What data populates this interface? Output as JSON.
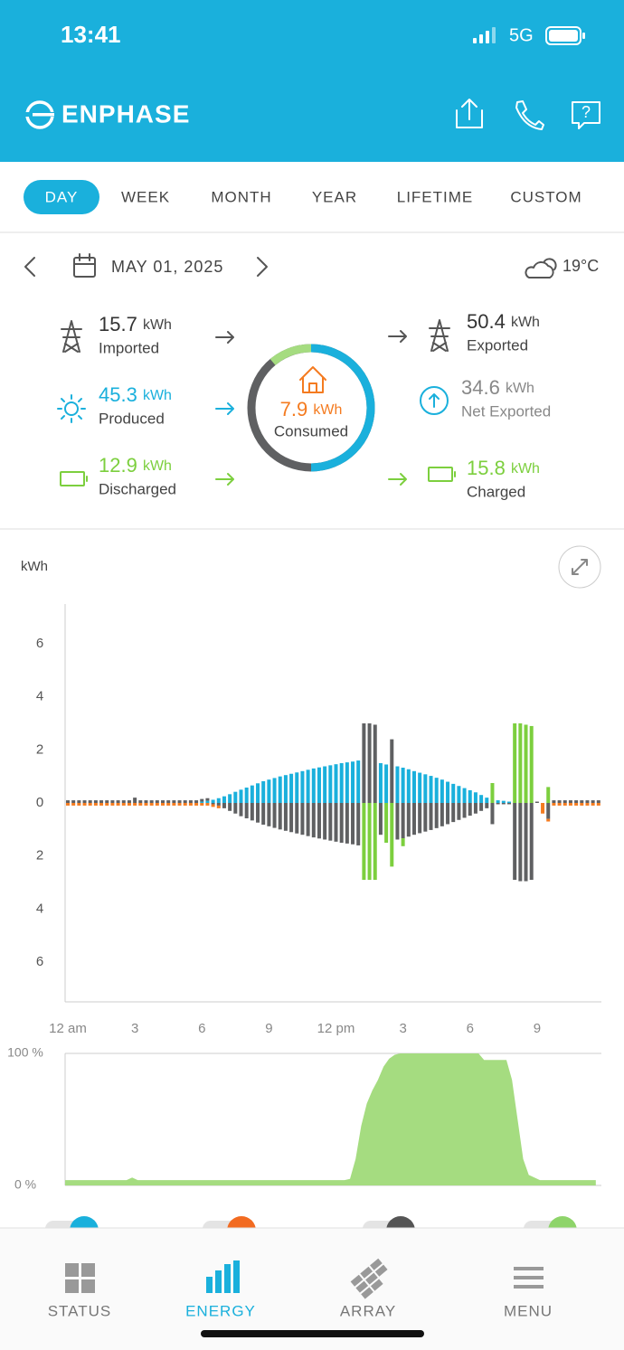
{
  "status_bar": {
    "time": "13:41",
    "network": "5G"
  },
  "header": {
    "brand": "ENPHASE"
  },
  "tabs": {
    "items": [
      "DAY",
      "WEEK",
      "MONTH",
      "YEAR",
      "LIFETIME",
      "CUSTOM"
    ],
    "active": 0
  },
  "date_bar": {
    "date": "MAY 01, 2025",
    "temperature": "19°C"
  },
  "flows": {
    "imported": {
      "value": 15.7,
      "unit": "kWh",
      "label": "Imported"
    },
    "produced": {
      "value": 45.3,
      "unit": "kWh",
      "label": "Produced"
    },
    "discharged": {
      "value": 12.9,
      "unit": "kWh",
      "label": "Discharged"
    },
    "consumed": {
      "value": 7.9,
      "unit": "kWh",
      "label": "Consumed"
    },
    "exported": {
      "value": 50.4,
      "unit": "kWh",
      "label": "Exported"
    },
    "net_exported": {
      "value": 34.6,
      "unit": "kWh",
      "label": "Net Exported"
    },
    "charged": {
      "value": 15.8,
      "unit": "kWh",
      "label": "Charged"
    }
  },
  "chart_data": [
    {
      "type": "bar",
      "stacked": true,
      "y_label": "kWh",
      "x": [
        0,
        0.25,
        0.5,
        0.75,
        1,
        1.25,
        1.5,
        1.75,
        2,
        2.25,
        2.5,
        2.75,
        3,
        3.25,
        3.5,
        3.75,
        4,
        4.25,
        4.5,
        4.75,
        5,
        5.25,
        5.5,
        5.75,
        6,
        6.25,
        6.5,
        6.75,
        7,
        7.25,
        7.5,
        7.75,
        8,
        8.25,
        8.5,
        8.75,
        9,
        9.25,
        9.5,
        9.75,
        10,
        10.25,
        10.5,
        10.75,
        11,
        11.25,
        11.5,
        11.75,
        12,
        12.25,
        12.5,
        12.75,
        13,
        13.25,
        13.5,
        13.75,
        14,
        14.25,
        14.5,
        14.75,
        15,
        15.25,
        15.5,
        15.75,
        16,
        16.25,
        16.5,
        16.75,
        17,
        17.25,
        17.5,
        17.75,
        18,
        18.25,
        18.5,
        18.75,
        19,
        19.25,
        19.5,
        19.75,
        20,
        20.25,
        20.5,
        20.75,
        21,
        21.25,
        21.5,
        21.75,
        22,
        22.25,
        22.5,
        22.75,
        23,
        23.25,
        23.5,
        23.75
      ],
      "xlim": [
        0,
        24
      ],
      "xticks": [
        {
          "value": 0,
          "label": "12 am"
        },
        3,
        6,
        9,
        {
          "value": 12,
          "label": "12 pm"
        },
        {
          "value": 15,
          "label": "3"
        },
        {
          "value": 18,
          "label": "6"
        },
        {
          "value": 21,
          "label": "9"
        }
      ],
      "ylim": [
        -7.5,
        7.5
      ],
      "yticks": [
        6,
        4,
        2,
        0,
        {
          "value": -2,
          "label": "2"
        },
        {
          "value": -4,
          "label": "4"
        },
        {
          "value": -6,
          "label": "6"
        }
      ],
      "series": [
        {
          "color": "#1ab0dc",
          "values": [
            0,
            0,
            0,
            0,
            0,
            0,
            0,
            0,
            0,
            0,
            0,
            0,
            0,
            0,
            0,
            0,
            0,
            0,
            0,
            0,
            0,
            0,
            0,
            0,
            0.05,
            0.08,
            0.12,
            0.18,
            0.25,
            0.33,
            0.42,
            0.5,
            0.58,
            0.66,
            0.74,
            0.82,
            0.88,
            0.94,
            1.0,
            1.05,
            1.1,
            1.15,
            1.2,
            1.25,
            1.3,
            1.34,
            1.38,
            1.42,
            1.46,
            1.5,
            1.53,
            1.56,
            1.6,
            0,
            0,
            0,
            1.5,
            1.45,
            0,
            1.38,
            1.33,
            1.27,
            1.2,
            1.14,
            1.08,
            1.02,
            0.95,
            0.88,
            0.8,
            0.72,
            0.64,
            0.56,
            0.48,
            0.4,
            0.3,
            0.2,
            0,
            0.1,
            0.08,
            0.05,
            0,
            0,
            0,
            0,
            0,
            0,
            0,
            0,
            0,
            0,
            0,
            0,
            0,
            0,
            0,
            0
          ]
        },
        {
          "color": "#5f6062",
          "values": [
            0.1,
            0.1,
            0.1,
            0.1,
            0.1,
            0.1,
            0.1,
            0.1,
            0.1,
            0.1,
            0.1,
            0.1,
            0.2,
            0.1,
            0.1,
            0.1,
            0.1,
            0.1,
            0.1,
            0.1,
            0.1,
            0.1,
            0.1,
            0.1,
            0.1,
            0.1,
            -0.05,
            -0.1,
            -0.2,
            -0.3,
            -0.4,
            -0.5,
            -0.58,
            -0.66,
            -0.74,
            -0.82,
            -0.88,
            -0.94,
            -1.0,
            -1.05,
            -1.1,
            -1.15,
            -1.2,
            -1.25,
            -1.3,
            -1.34,
            -1.38,
            -1.42,
            -1.46,
            -1.5,
            -1.53,
            -1.56,
            -1.6,
            3,
            3,
            2.95,
            -1.2,
            0,
            2.4,
            -1.38,
            -1.33,
            -1.27,
            -1.2,
            -1.14,
            -1.08,
            -1.02,
            -0.95,
            -0.88,
            -0.8,
            -0.72,
            -0.64,
            -0.56,
            -0.48,
            -0.4,
            -0.3,
            -0.2,
            -0.8,
            -0.05,
            -0.05,
            -0.05,
            -2.9,
            -2.95,
            -2.95,
            -2.9,
            0.05,
            0,
            -0.6,
            0.1,
            0.1,
            0.1,
            0.1,
            0.1,
            0.1,
            0.1,
            0.1,
            0.1
          ]
        },
        {
          "color": "#7ccf3e",
          "values": [
            0,
            0,
            0,
            0,
            0,
            0,
            0,
            0,
            0,
            0,
            0,
            0,
            0,
            0,
            0,
            0,
            0,
            0,
            0,
            0,
            0,
            0,
            0,
            0,
            0,
            0,
            0,
            0,
            0,
            0,
            0,
            0,
            0,
            0,
            0,
            0,
            0,
            0,
            0,
            0,
            0,
            0,
            0,
            0,
            0,
            0,
            0,
            0,
            0,
            0,
            0,
            0,
            0,
            -2.9,
            -2.9,
            -2.9,
            0,
            -1.5,
            -2.4,
            0,
            -0.3,
            0,
            0,
            0,
            0,
            0,
            0,
            0,
            0,
            0,
            0,
            0,
            0,
            0,
            0,
            0,
            0.75,
            0,
            0,
            0,
            3,
            3,
            2.95,
            2.9,
            0,
            0,
            0.6,
            0,
            0,
            0,
            0,
            0,
            0,
            0,
            0,
            0
          ]
        },
        {
          "color": "#f47b20",
          "values": [
            -0.1,
            -0.1,
            -0.1,
            -0.1,
            -0.1,
            -0.1,
            -0.1,
            -0.1,
            -0.1,
            -0.1,
            -0.1,
            -0.1,
            -0.1,
            -0.1,
            -0.1,
            -0.1,
            -0.1,
            -0.1,
            -0.1,
            -0.1,
            -0.1,
            -0.1,
            -0.1,
            -0.1,
            -0.1,
            -0.1,
            -0.1,
            -0.1,
            0,
            0,
            0,
            0,
            0,
            0,
            0,
            0,
            0,
            0,
            0,
            0,
            0,
            0,
            0,
            0,
            0,
            0,
            0,
            0,
            0,
            0,
            0,
            0,
            0,
            0,
            0,
            0,
            0,
            0,
            0,
            0,
            0,
            0,
            0,
            0,
            0,
            0,
            0,
            0,
            0,
            0,
            0,
            0,
            0,
            0,
            0,
            0,
            0,
            0,
            0,
            0,
            0,
            0,
            0,
            0,
            0,
            -0.4,
            -0.1,
            -0.1,
            -0.1,
            -0.1,
            -0.1,
            -0.1,
            -0.1,
            -0.1,
            -0.1,
            -0.1
          ]
        }
      ]
    },
    {
      "type": "area",
      "grid": true,
      "color": "#a5dc80",
      "x": [
        0,
        0.25,
        0.5,
        0.75,
        1,
        1.25,
        1.5,
        1.75,
        2,
        2.25,
        2.5,
        2.75,
        3,
        3.25,
        3.5,
        3.75,
        4,
        4.25,
        4.5,
        4.75,
        5,
        5.25,
        5.5,
        5.75,
        6,
        6.25,
        6.5,
        6.75,
        7,
        7.25,
        7.5,
        7.75,
        8,
        8.25,
        8.5,
        8.75,
        9,
        9.25,
        9.5,
        9.75,
        10,
        10.25,
        10.5,
        10.75,
        11,
        11.25,
        11.5,
        11.75,
        12,
        12.25,
        12.5,
        12.75,
        13,
        13.25,
        13.5,
        13.75,
        14,
        14.25,
        14.5,
        14.75,
        15,
        15.25,
        15.5,
        15.75,
        16,
        16.25,
        16.5,
        16.75,
        17,
        17.25,
        17.5,
        17.75,
        18,
        18.25,
        18.5,
        18.75,
        19,
        19.25,
        19.5,
        19.75,
        20,
        20.25,
        20.5,
        20.75,
        21,
        21.25,
        21.5,
        21.75,
        22,
        22.25,
        22.5,
        22.75,
        23,
        23.25,
        23.5,
        23.75
      ],
      "xlim": [
        0,
        24
      ],
      "ylim": [
        0,
        100
      ],
      "yticks": [
        {
          "value": 0,
          "label": "0 %"
        },
        {
          "value": 100,
          "label": "100 %"
        }
      ],
      "values": [
        4,
        4,
        4,
        4,
        4,
        4,
        4,
        4,
        4,
        4,
        4,
        4,
        6,
        4,
        4,
        4,
        4,
        4,
        4,
        4,
        4,
        4,
        4,
        4,
        4,
        4,
        4,
        4,
        4,
        4,
        4,
        4,
        4,
        4,
        4,
        4,
        4,
        4,
        4,
        4,
        4,
        4,
        4,
        4,
        4,
        4,
        4,
        4,
        4,
        4,
        4,
        5,
        20,
        45,
        62,
        72,
        80,
        90,
        96,
        99,
        100,
        100,
        100,
        100,
        100,
        100,
        100,
        100,
        100,
        100,
        100,
        100,
        100,
        100,
        100,
        95,
        95,
        95,
        95,
        95,
        80,
        50,
        20,
        8,
        6,
        4,
        4,
        4,
        4,
        4,
        4,
        4,
        4,
        4,
        4,
        4
      ]
    }
  ],
  "nav": {
    "items": [
      "STATUS",
      "ENERGY",
      "ARRAY",
      "MENU"
    ],
    "active": 1
  }
}
